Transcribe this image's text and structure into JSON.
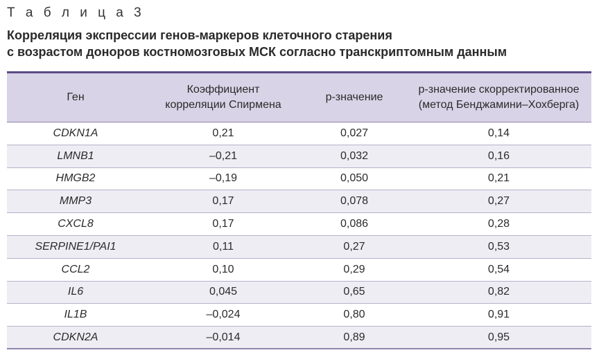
{
  "caption": "Т а б л и ц а   3",
  "title_line1": "Корреляция экспрессии генов-маркеров клеточного старения",
  "title_line2": "с возрастом доноров костномозговых МСК согласно транскриптомным данным",
  "headers": {
    "gene": "Ген",
    "spearman_line1": "Коэффициент",
    "spearman_line2": "корреляции Спирмена",
    "p_value": "p-значение",
    "p_adj_line1": "p-значение скорректированное",
    "p_adj_line2": "(метод Бенджамини–Хохберга)"
  },
  "rows": [
    {
      "gene": "CDKN1A",
      "spearman": "0,21",
      "p": "0,027",
      "p_adj": "0,14"
    },
    {
      "gene": "LMNB1",
      "spearman": "–0,21",
      "p": "0,032",
      "p_adj": "0,16"
    },
    {
      "gene": "HMGB2",
      "spearman": "–0,19",
      "p": "0,050",
      "p_adj": "0,21"
    },
    {
      "gene": "MMP3",
      "spearman": "0,17",
      "p": "0,078",
      "p_adj": "0,27"
    },
    {
      "gene": "CXCL8",
      "spearman": "0,17",
      "p": "0,086",
      "p_adj": "0,28"
    },
    {
      "gene": "SERPINE1/PAI1",
      "spearman": "0,11",
      "p": "0,27",
      "p_adj": "0,53"
    },
    {
      "gene": "CCL2",
      "spearman": "0,10",
      "p": "0,29",
      "p_adj": "0,54"
    },
    {
      "gene": "IL6",
      "spearman": "0,045",
      "p": "0,65",
      "p_adj": "0,82"
    },
    {
      "gene": "IL1B",
      "spearman": "–0,024",
      "p": "0,80",
      "p_adj": "0,91"
    },
    {
      "gene": "CDKN2A",
      "spearman": "–0,014",
      "p": "0,89",
      "p_adj": "0,95"
    }
  ]
}
